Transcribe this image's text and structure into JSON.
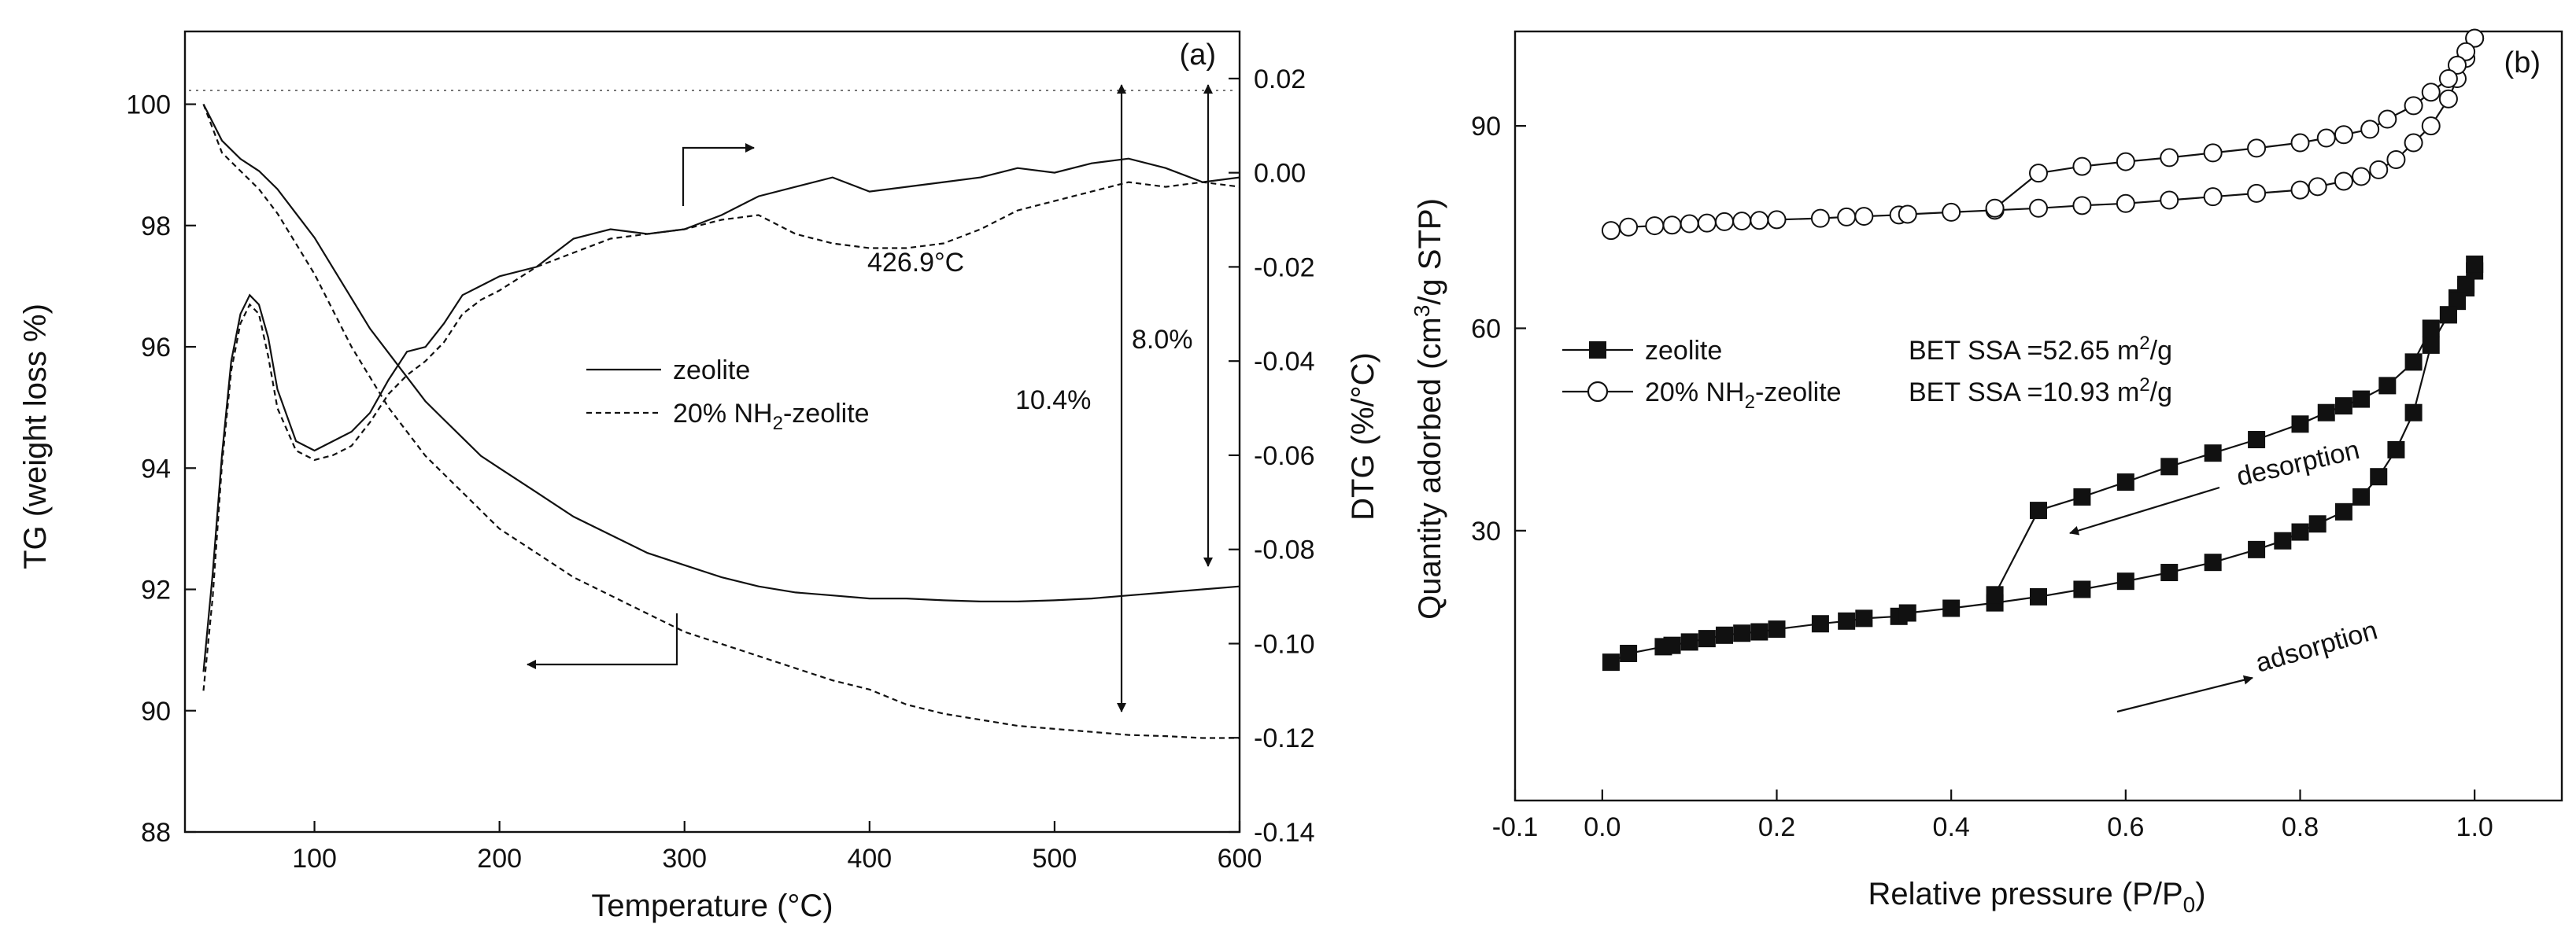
{
  "colors": {
    "ink": "#111111",
    "background": "#ffffff",
    "dotted": "#666666"
  },
  "chart_data": [
    {
      "id": "a",
      "type": "line",
      "panel_label": "(a)",
      "xlabel": "Temperature (°C)",
      "ylabel_left": "TG (weight loss %)",
      "ylabel_right": "DTG (%/°C)",
      "xlim": [
        30,
        600
      ],
      "ylim_left": [
        88,
        101.2
      ],
      "ylim_right": [
        -0.14,
        0.03
      ],
      "x_ticks": [
        "100",
        "200",
        "300",
        "400",
        "500",
        "600"
      ],
      "y_ticks_left": [
        "88",
        "90",
        "92",
        "94",
        "96",
        "98",
        "100"
      ],
      "y_ticks_right": [
        "-0.14",
        "-0.12",
        "-0.10",
        "-0.08",
        "-0.06",
        "-0.04",
        "-0.02",
        "0.00",
        "0.02"
      ],
      "legend": {
        "position": "center-right",
        "entries": [
          "zeolite",
          "20% NH2-zeolite"
        ]
      },
      "annotations": {
        "peak": "426.9°C",
        "loss_zeolite": "8.0%",
        "loss_nh2": "10.4%"
      },
      "series": [
        {
          "name": "zeolite",
          "kind": "TG",
          "axis": "left",
          "style": "solid",
          "x": [
            40,
            50,
            60,
            70,
            80,
            90,
            100,
            110,
            120,
            130,
            140,
            150,
            160,
            170,
            180,
            190,
            200,
            220,
            240,
            260,
            280,
            300,
            320,
            340,
            360,
            380,
            400,
            420,
            440,
            460,
            480,
            500,
            520,
            540,
            560,
            580,
            600
          ],
          "values": [
            100.0,
            99.4,
            99.1,
            98.9,
            98.6,
            98.2,
            97.8,
            97.3,
            96.8,
            96.3,
            95.9,
            95.5,
            95.1,
            94.8,
            94.5,
            94.2,
            94.0,
            93.6,
            93.2,
            92.9,
            92.6,
            92.4,
            92.2,
            92.05,
            91.95,
            91.9,
            91.85,
            91.85,
            91.82,
            91.8,
            91.8,
            91.82,
            91.85,
            91.9,
            91.95,
            92.0,
            92.05
          ]
        },
        {
          "name": "20% NH2-zeolite",
          "kind": "TG",
          "axis": "left",
          "style": "dashed",
          "x": [
            40,
            50,
            60,
            70,
            80,
            90,
            100,
            110,
            120,
            130,
            140,
            150,
            160,
            170,
            180,
            190,
            200,
            220,
            240,
            260,
            280,
            300,
            320,
            340,
            360,
            380,
            400,
            420,
            440,
            460,
            480,
            500,
            520,
            540,
            560,
            580,
            600
          ],
          "values": [
            100.0,
            99.2,
            98.9,
            98.6,
            98.2,
            97.7,
            97.2,
            96.6,
            96.0,
            95.5,
            95.0,
            94.6,
            94.2,
            93.9,
            93.6,
            93.3,
            93.0,
            92.6,
            92.2,
            91.9,
            91.6,
            91.3,
            91.1,
            90.9,
            90.7,
            90.5,
            90.35,
            90.1,
            89.95,
            89.85,
            89.75,
            89.7,
            89.65,
            89.6,
            89.58,
            89.55,
            89.55
          ]
        },
        {
          "name": "zeolite",
          "kind": "DTG",
          "axis": "right",
          "style": "solid",
          "x": [
            40,
            45,
            50,
            55,
            60,
            65,
            70,
            75,
            80,
            90,
            100,
            110,
            120,
            130,
            140,
            150,
            160,
            170,
            180,
            190,
            200,
            220,
            240,
            260,
            280,
            300,
            320,
            340,
            360,
            380,
            400,
            420,
            440,
            460,
            480,
            500,
            520,
            540,
            560,
            580,
            600
          ],
          "values": [
            -0.106,
            -0.085,
            -0.06,
            -0.04,
            -0.03,
            -0.026,
            -0.028,
            -0.035,
            -0.046,
            -0.057,
            -0.059,
            -0.057,
            -0.055,
            -0.051,
            -0.044,
            -0.038,
            -0.037,
            -0.032,
            -0.026,
            -0.024,
            -0.022,
            -0.02,
            -0.014,
            -0.012,
            -0.013,
            -0.012,
            -0.009,
            -0.005,
            -0.003,
            -0.001,
            -0.004,
            -0.003,
            -0.002,
            -0.001,
            0.001,
            0.0,
            0.002,
            0.003,
            0.001,
            -0.002,
            -0.001
          ]
        },
        {
          "name": "20% NH2-zeolite",
          "kind": "DTG",
          "axis": "right",
          "style": "dashed",
          "x": [
            40,
            45,
            50,
            55,
            60,
            65,
            70,
            75,
            80,
            90,
            100,
            110,
            120,
            130,
            140,
            150,
            160,
            170,
            180,
            190,
            200,
            220,
            240,
            260,
            280,
            300,
            320,
            340,
            360,
            380,
            400,
            420,
            440,
            460,
            480,
            500,
            520,
            540,
            560,
            580,
            600
          ],
          "values": [
            -0.11,
            -0.09,
            -0.062,
            -0.042,
            -0.032,
            -0.028,
            -0.03,
            -0.039,
            -0.05,
            -0.059,
            -0.061,
            -0.06,
            -0.058,
            -0.053,
            -0.047,
            -0.043,
            -0.04,
            -0.036,
            -0.03,
            -0.027,
            -0.025,
            -0.02,
            -0.017,
            -0.014,
            -0.013,
            -0.012,
            -0.01,
            -0.009,
            -0.013,
            -0.015,
            -0.016,
            -0.016,
            -0.015,
            -0.012,
            -0.008,
            -0.006,
            -0.004,
            -0.002,
            -0.003,
            -0.002,
            -0.003
          ]
        }
      ]
    },
    {
      "id": "b",
      "type": "line",
      "panel_label": "(b)",
      "xlabel": "Relative pressure (P/P0)",
      "ylabel": "Quantity adorbed (cm3/g STP)",
      "xlim": [
        -0.1,
        1.1
      ],
      "ylim": [
        -10,
        104
      ],
      "x_ticks": [
        "-0.1",
        "0.0",
        "0.2",
        "0.4",
        "0.6",
        "0.8",
        "1.0"
      ],
      "y_ticks": [
        "30",
        "60",
        "90"
      ],
      "legend": {
        "position": "center-left",
        "entries": [
          {
            "name": "zeolite",
            "marker": "filled-square",
            "bet": "BET SSA =52.65 m2/g"
          },
          {
            "name": "20% NH2-zeolite",
            "marker": "open-circle",
            "bet": "BET SSA =10.93 m2/g"
          }
        ]
      },
      "annotations": {
        "desorption": "desorption",
        "adsorption": "adsorption"
      },
      "series": [
        {
          "name": "zeolite adsorption",
          "marker": "filled-square",
          "x": [
            0.01,
            0.03,
            0.07,
            0.08,
            0.1,
            0.12,
            0.14,
            0.16,
            0.18,
            0.2,
            0.25,
            0.28,
            0.3,
            0.34,
            0.35,
            0.4,
            0.45,
            0.5,
            0.55,
            0.6,
            0.65,
            0.7,
            0.75,
            0.78,
            0.8,
            0.82,
            0.85,
            0.87,
            0.89,
            0.91,
            0.93,
            0.95,
            0.97,
            0.98,
            0.99,
            1.0
          ],
          "values": [
            10.5,
            11.8,
            12.8,
            13.0,
            13.5,
            14.0,
            14.5,
            14.8,
            15.0,
            15.4,
            16.2,
            16.6,
            17.0,
            17.3,
            17.8,
            18.5,
            19.3,
            20.2,
            21.3,
            22.5,
            23.8,
            25.3,
            27.2,
            28.5,
            29.8,
            31.0,
            32.8,
            35.0,
            38.0,
            42.0,
            47.5,
            57.5,
            62.0,
            64.5,
            66.5,
            68.5
          ]
        },
        {
          "name": "zeolite desorption",
          "marker": "filled-square",
          "x": [
            1.0,
            0.99,
            0.98,
            0.97,
            0.95,
            0.93,
            0.9,
            0.87,
            0.85,
            0.83,
            0.8,
            0.75,
            0.7,
            0.65,
            0.6,
            0.55,
            0.5,
            0.45
          ],
          "values": [
            69.5,
            66.0,
            64.0,
            62.0,
            60.0,
            55.0,
            51.5,
            49.5,
            48.5,
            47.5,
            45.8,
            43.5,
            41.5,
            39.5,
            37.2,
            35.0,
            33.0,
            20.5
          ]
        },
        {
          "name": "20% NH2-zeolite adsorption",
          "marker": "open-circle",
          "x": [
            0.01,
            0.03,
            0.06,
            0.08,
            0.1,
            0.12,
            0.14,
            0.16,
            0.18,
            0.2,
            0.25,
            0.28,
            0.3,
            0.34,
            0.35,
            0.4,
            0.45,
            0.5,
            0.55,
            0.6,
            0.65,
            0.7,
            0.75,
            0.8,
            0.82,
            0.85,
            0.87,
            0.89,
            0.91,
            0.93,
            0.95,
            0.97,
            0.98,
            0.99,
            1.0
          ],
          "values": [
            74.5,
            75.0,
            75.2,
            75.3,
            75.5,
            75.6,
            75.8,
            75.9,
            76.0,
            76.1,
            76.3,
            76.5,
            76.6,
            76.8,
            76.9,
            77.2,
            77.5,
            77.8,
            78.2,
            78.5,
            79.0,
            79.5,
            80.0,
            80.5,
            81.0,
            81.8,
            82.5,
            83.5,
            85.0,
            87.5,
            90.0,
            94.0,
            97.0,
            100.0,
            103.0
          ]
        },
        {
          "name": "20% NH2-zeolite desorption",
          "marker": "open-circle",
          "x": [
            1.0,
            0.99,
            0.98,
            0.97,
            0.95,
            0.93,
            0.9,
            0.88,
            0.85,
            0.83,
            0.8,
            0.75,
            0.7,
            0.65,
            0.6,
            0.55,
            0.5,
            0.45
          ],
          "values": [
            103.0,
            101.0,
            99.0,
            97.0,
            95.0,
            93.0,
            91.0,
            89.5,
            88.7,
            88.2,
            87.5,
            86.7,
            86.0,
            85.3,
            84.7,
            84.0,
            83.0,
            77.8
          ]
        }
      ]
    }
  ]
}
